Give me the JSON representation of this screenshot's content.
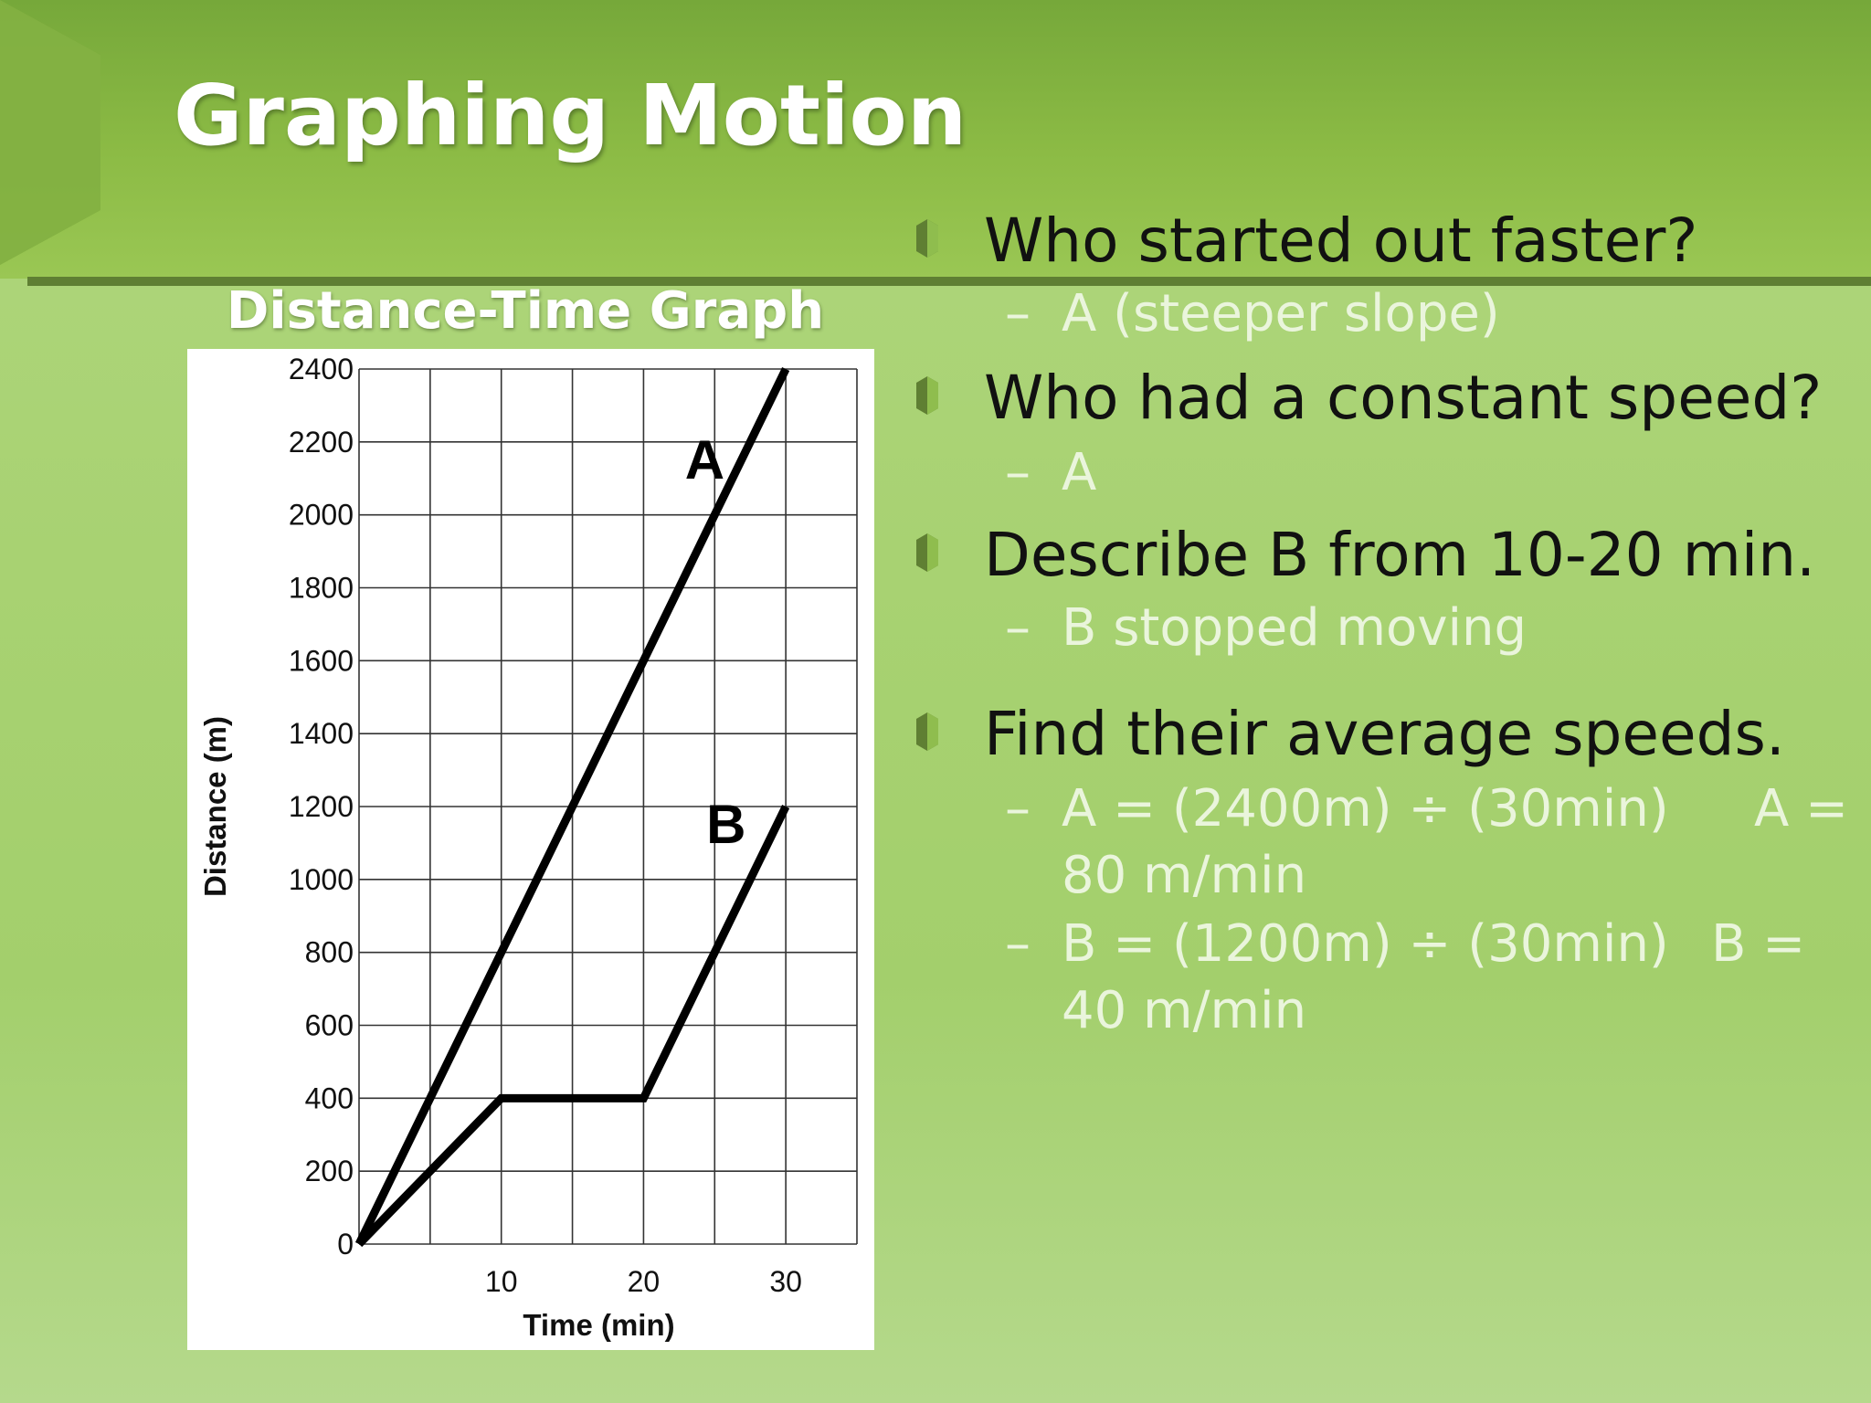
{
  "slide": {
    "title": "Graphing Motion",
    "colors": {
      "accent": "#8cbb45",
      "bullet": "#5f7f33",
      "answer_text": "#eaf5dc"
    }
  },
  "graph": {
    "heading": "Distance-Time Graph"
  },
  "questions": [
    {
      "text": "Who started out faster?",
      "answers": [
        {
          "text": "A (steeper slope)"
        }
      ]
    },
    {
      "text": "Who had a constant speed?",
      "answers": [
        {
          "text": "A"
        }
      ]
    },
    {
      "text": "Describe B from 10-20 min.",
      "answers": [
        {
          "text": "B stopped moving"
        }
      ]
    },
    {
      "text": "Find their average speeds.",
      "answers": [
        {
          "text": "A = (2400m) ÷ (30min)",
          "result_label": "A =",
          "result_value": "80 m/min"
        },
        {
          "text": "B = (1200m) ÷ (30min)",
          "result_label": "B =",
          "result_value": "40 m/min"
        }
      ]
    }
  ],
  "chart_data": {
    "type": "line",
    "xlabel": "Time (min)",
    "ylabel": "Distance (m)",
    "xlim": [
      0,
      35
    ],
    "ylim": [
      0,
      2400
    ],
    "x_ticks": [
      10,
      20,
      30
    ],
    "y_ticks": [
      0,
      200,
      400,
      600,
      800,
      1000,
      1200,
      1400,
      1600,
      1800,
      2000,
      2200,
      2400
    ],
    "grid": true,
    "series": [
      {
        "name": "A",
        "x": [
          0,
          30
        ],
        "y": [
          0,
          2400
        ]
      },
      {
        "name": "B",
        "x": [
          0,
          10,
          20,
          30
        ],
        "y": [
          0,
          400,
          400,
          1200
        ]
      }
    ]
  }
}
